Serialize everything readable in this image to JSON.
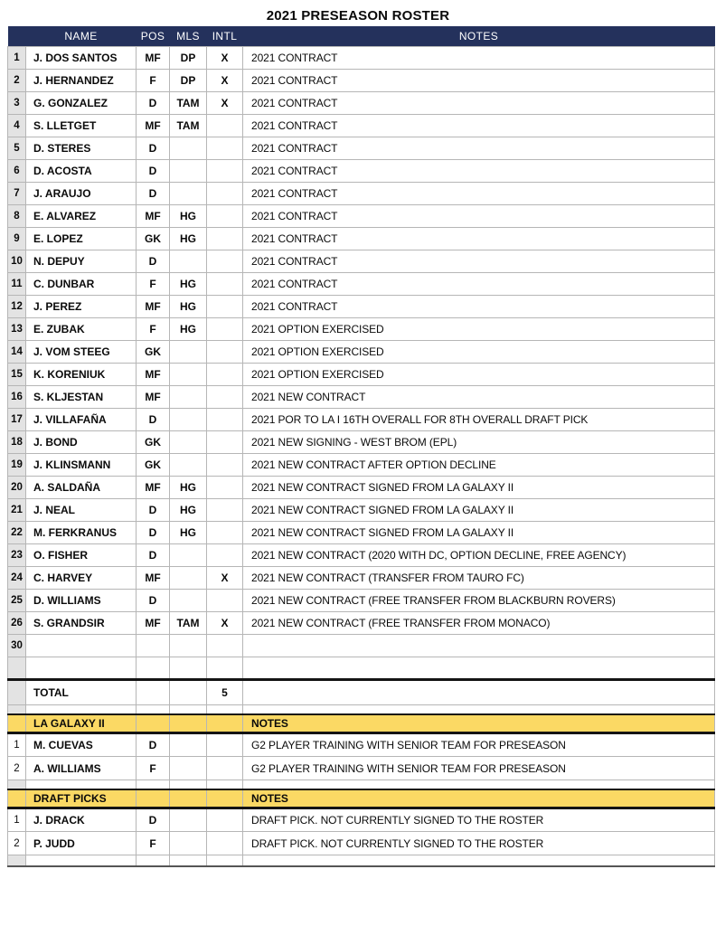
{
  "title": "2021 PRESEASON ROSTER",
  "columns": {
    "name": "NAME",
    "pos": "POS",
    "mls": "MLS",
    "intl": "INTL",
    "notes": "NOTES"
  },
  "players": [
    {
      "num": "1",
      "name": "J. DOS SANTOS",
      "pos": "MF",
      "mls": "DP",
      "intl": "X",
      "notes": "2021 CONTRACT"
    },
    {
      "num": "2",
      "name": "J. HERNANDEZ",
      "pos": "F",
      "mls": "DP",
      "intl": "X",
      "notes": "2021 CONTRACT"
    },
    {
      "num": "3",
      "name": "G. GONZALEZ",
      "pos": "D",
      "mls": "TAM",
      "intl": "X",
      "notes": "2021 CONTRACT"
    },
    {
      "num": "4",
      "name": "S. LLETGET",
      "pos": "MF",
      "mls": "TAM",
      "intl": "",
      "notes": "2021 CONTRACT"
    },
    {
      "num": "5",
      "name": "D. STERES",
      "pos": "D",
      "mls": "",
      "intl": "",
      "notes": "2021 CONTRACT"
    },
    {
      "num": "6",
      "name": "D. ACOSTA",
      "pos": "D",
      "mls": "",
      "intl": "",
      "notes": "2021 CONTRACT"
    },
    {
      "num": "7",
      "name": "J. ARAUJO",
      "pos": "D",
      "mls": "",
      "intl": "",
      "notes": "2021 CONTRACT"
    },
    {
      "num": "8",
      "name": "E. ALVAREZ",
      "pos": "MF",
      "mls": "HG",
      "intl": "",
      "notes": "2021 CONTRACT"
    },
    {
      "num": "9",
      "name": "E. LOPEZ",
      "pos": "GK",
      "mls": "HG",
      "intl": "",
      "notes": "2021 CONTRACT"
    },
    {
      "num": "10",
      "name": "N. DEPUY",
      "pos": "D",
      "mls": "",
      "intl": "",
      "notes": "2021 CONTRACT"
    },
    {
      "num": "11",
      "name": "C. DUNBAR",
      "pos": "F",
      "mls": "HG",
      "intl": "",
      "notes": "2021 CONTRACT"
    },
    {
      "num": "12",
      "name": "J. PEREZ",
      "pos": "MF",
      "mls": "HG",
      "intl": "",
      "notes": "2021 CONTRACT"
    },
    {
      "num": "13",
      "name": "E. ZUBAK",
      "pos": "F",
      "mls": "HG",
      "intl": "",
      "notes": "2021 OPTION EXERCISED"
    },
    {
      "num": "14",
      "name": "J. VOM STEEG",
      "pos": "GK",
      "mls": "",
      "intl": "",
      "notes": "2021 OPTION EXERCISED"
    },
    {
      "num": "15",
      "name": "K. KORENIUK",
      "pos": "MF",
      "mls": "",
      "intl": "",
      "notes": "2021 OPTION EXERCISED"
    },
    {
      "num": "16",
      "name": "S. KLJESTAN",
      "pos": "MF",
      "mls": "",
      "intl": "",
      "notes": "2021 NEW CONTRACT"
    },
    {
      "num": "17",
      "name": "J. VILLAFAÑA",
      "pos": "D",
      "mls": "",
      "intl": "",
      "notes": "2021 POR TO LA I 16TH OVERALL FOR 8TH OVERALL DRAFT PICK"
    },
    {
      "num": "18",
      "name": "J. BOND",
      "pos": "GK",
      "mls": "",
      "intl": "",
      "notes": "2021 NEW SIGNING - WEST BROM (EPL)"
    },
    {
      "num": "19",
      "name": "J. KLINSMANN",
      "pos": "GK",
      "mls": "",
      "intl": "",
      "notes": "2021 NEW CONTRACT AFTER OPTION DECLINE"
    },
    {
      "num": "20",
      "name": "A. SALDAÑA",
      "pos": "MF",
      "mls": "HG",
      "intl": "",
      "notes": "2021 NEW CONTRACT SIGNED FROM LA GALAXY II"
    },
    {
      "num": "21",
      "name": "J. NEAL",
      "pos": "D",
      "mls": "HG",
      "intl": "",
      "notes": "2021 NEW CONTRACT SIGNED FROM LA GALAXY II"
    },
    {
      "num": "22",
      "name": "M. FERKRANUS",
      "pos": "D",
      "mls": "HG",
      "intl": "",
      "notes": "2021 NEW CONTRACT SIGNED FROM LA GALAXY II"
    },
    {
      "num": "23",
      "name": "O. FISHER",
      "pos": "D",
      "mls": "",
      "intl": "",
      "notes": "2021 NEW CONTRACT (2020 WITH DC, OPTION DECLINE, FREE AGENCY)"
    },
    {
      "num": "24",
      "name": "C. HARVEY",
      "pos": "MF",
      "mls": "",
      "intl": "X",
      "notes": "2021 NEW CONTRACT (TRANSFER FROM TAURO FC)"
    },
    {
      "num": "25",
      "name": "D. WILLIAMS",
      "pos": "D",
      "mls": "",
      "intl": "",
      "notes": "2021 NEW CONTRACT (FREE TRANSFER FROM BLACKBURN ROVERS)"
    },
    {
      "num": "26",
      "name": "S. GRANDSIR",
      "pos": "MF",
      "mls": "TAM",
      "intl": "X",
      "notes": "2021 NEW CONTRACT (FREE TRANSFER FROM MONACO)"
    }
  ],
  "extra_rows": [
    {
      "num": "30",
      "name": "",
      "pos": "",
      "mls": "",
      "intl": "",
      "notes": ""
    },
    {
      "num": "",
      "name": "",
      "pos": "",
      "mls": "",
      "intl": "",
      "notes": ""
    }
  ],
  "total_row": {
    "label": "TOTAL",
    "intl_total": "5"
  },
  "sections": [
    {
      "header": "LA GALAXY II",
      "notes_header": "NOTES",
      "rows": [
        {
          "num": "1",
          "name": "M. CUEVAS",
          "pos": "D",
          "mls": "",
          "intl": "",
          "notes": "G2 PLAYER TRAINING WITH SENIOR TEAM FOR PRESEASON"
        },
        {
          "num": "2",
          "name": "A. WILLIAMS",
          "pos": "F",
          "mls": "",
          "intl": "",
          "notes": "G2 PLAYER TRAINING WITH SENIOR TEAM FOR PRESEASON"
        }
      ]
    },
    {
      "header": "DRAFT PICKS",
      "notes_header": "NOTES",
      "rows": [
        {
          "num": "1",
          "name": "J. DRACK",
          "pos": "D",
          "mls": "",
          "intl": "",
          "notes": "DRAFT PICK. NOT CURRENTLY SIGNED TO THE ROSTER"
        },
        {
          "num": "2",
          "name": "P. JUDD",
          "pos": "F",
          "mls": "",
          "intl": "",
          "notes": "DRAFT PICK. NOT CURRENTLY SIGNED TO THE ROSTER"
        }
      ]
    }
  ],
  "colors": {
    "header_bg": "#24315C",
    "header_text": "#FFFFFF",
    "section_bg": "#FBD964",
    "num_col_bg": "#E3E3E3",
    "grid_border": "#B6B6B6",
    "thick_border": "#141414"
  }
}
